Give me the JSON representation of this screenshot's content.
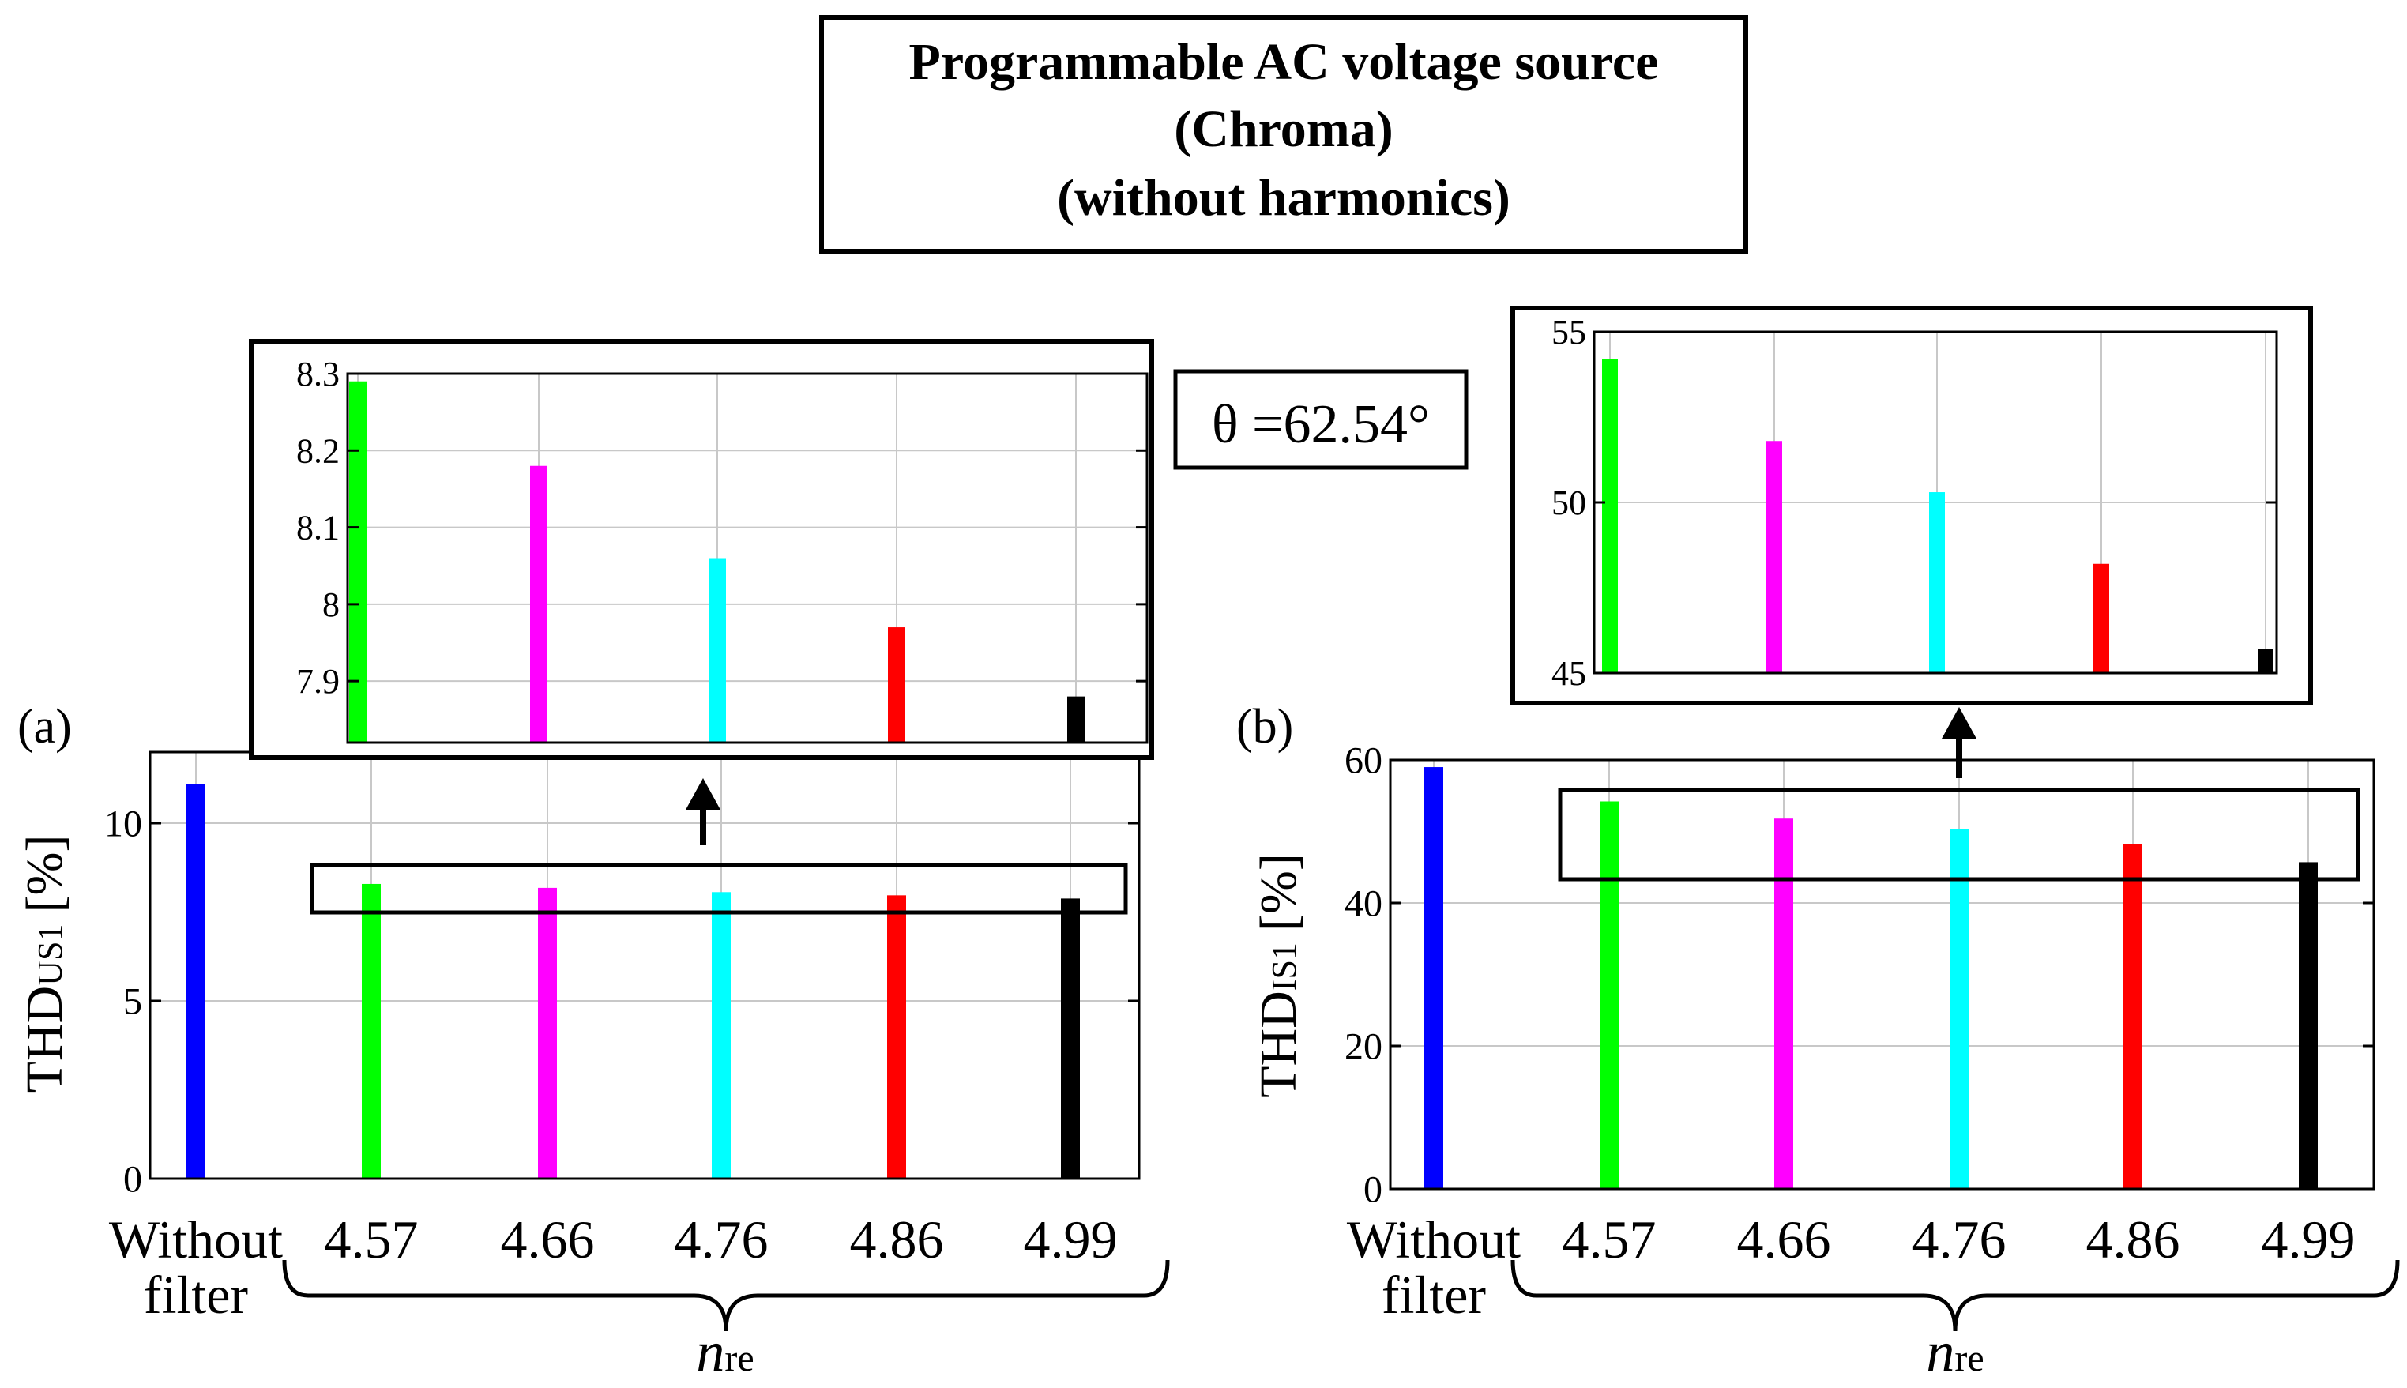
{
  "header": {
    "lines": [
      "Programmable AC voltage source",
      "(Chroma)",
      "(without harmonics)"
    ]
  },
  "theta_label": "θ =62.54°",
  "colors": {
    "without_filter": "#0000ff",
    "n457": "#00ff00",
    "n466": "#ff00ff",
    "n476": "#00ffff",
    "n486": "#ff0000",
    "n499": "#000000"
  },
  "group_label": {
    "symbol": "n",
    "subscript": "re"
  },
  "chart_data": [
    {
      "type": "bar",
      "panel_label": "(a)",
      "ylabel": {
        "main": "THD",
        "sub": "US1",
        "unit": "[%]"
      },
      "categories": [
        "Without filter",
        "4.57",
        "4.66",
        "4.76",
        "4.86",
        "4.99"
      ],
      "category_lines": [
        [
          "Without",
          "filter"
        ],
        [
          "4.57"
        ],
        [
          "4.66"
        ],
        [
          "4.76"
        ],
        [
          "4.86"
        ],
        [
          "4.99"
        ]
      ],
      "values": [
        11.1,
        8.29,
        8.18,
        8.06,
        7.97,
        7.88
      ],
      "ylim": [
        0,
        12
      ],
      "yticks": [
        "0",
        "5",
        "10"
      ],
      "grid": true,
      "inset": {
        "type": "bar",
        "categories": [
          "4.57",
          "4.66",
          "4.76",
          "4.86",
          "4.99"
        ],
        "values": [
          8.29,
          8.18,
          8.06,
          7.97,
          7.88
        ],
        "ylim": [
          7.82,
          8.3
        ],
        "yticks": [
          "7.9",
          "8",
          "8.1",
          "8.2",
          "8.3"
        ],
        "grid": true
      }
    },
    {
      "type": "bar",
      "panel_label": "(b)",
      "ylabel": {
        "main": "THD",
        "sub": "IS1",
        "unit": "[%]"
      },
      "categories": [
        "Without filter",
        "4.57",
        "4.66",
        "4.76",
        "4.86",
        "4.99"
      ],
      "category_lines": [
        [
          "Without",
          "filter"
        ],
        [
          "4.57"
        ],
        [
          "4.66"
        ],
        [
          "4.76"
        ],
        [
          "4.86"
        ],
        [
          "4.99"
        ]
      ],
      "values": [
        59.0,
        54.2,
        51.8,
        50.3,
        48.2,
        45.7
      ],
      "ylim": [
        0,
        60
      ],
      "yticks": [
        "0",
        "20",
        "40",
        "60"
      ],
      "grid": true,
      "inset": {
        "type": "bar",
        "categories": [
          "4.57",
          "4.66",
          "4.76",
          "4.86",
          "4.99"
        ],
        "values": [
          54.2,
          51.8,
          50.3,
          48.2,
          45.7
        ],
        "ylim": [
          45,
          55
        ],
        "yticks": [
          "45",
          "50",
          "55"
        ],
        "grid": true
      }
    }
  ]
}
